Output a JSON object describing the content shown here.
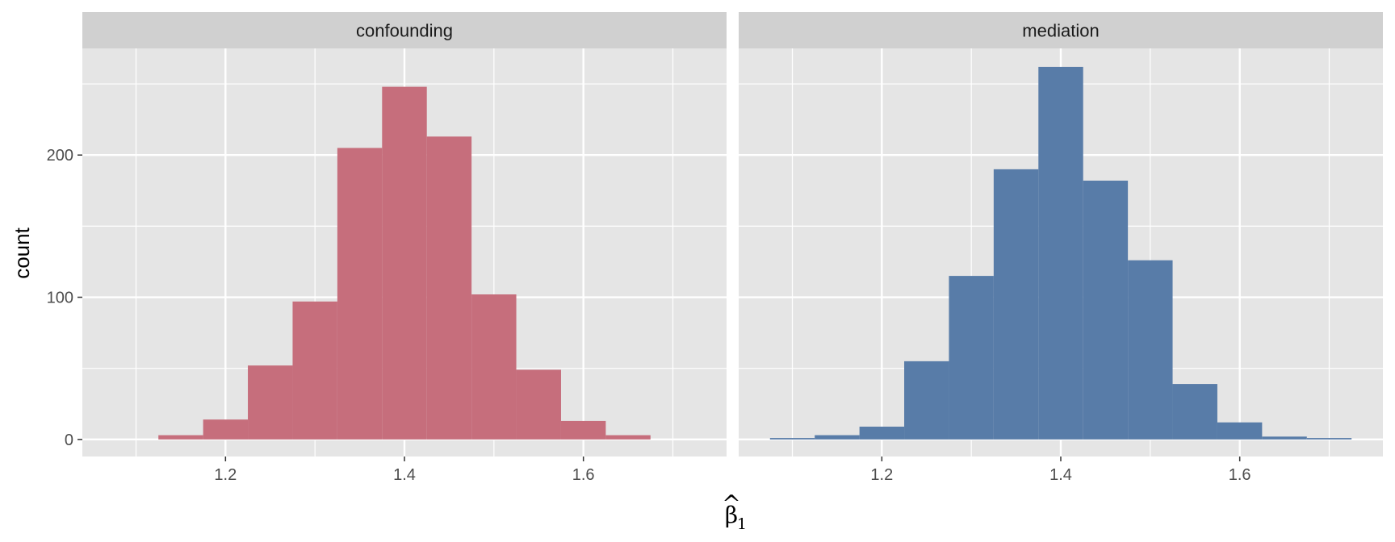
{
  "chart_data": {
    "type": "bar",
    "subtype": "histogram-facets",
    "ylabel": "count",
    "xlabel_main": "β",
    "xlabel_hat": "^",
    "xlabel_sub": "1",
    "bin_width": 0.05,
    "xlim": [
      1.04,
      1.76
    ],
    "ylim": [
      -12,
      275
    ],
    "x_ticks": [
      1.2,
      1.4,
      1.6
    ],
    "x_tick_labels": [
      "1.2",
      "1.4",
      "1.6"
    ],
    "y_ticks": [
      0,
      100,
      200
    ],
    "y_tick_labels": [
      "0",
      "100",
      "200"
    ],
    "grid": true,
    "colors": {
      "panel_bg": "#e5e5e5",
      "strip_bg": "#d0d0d0",
      "gridline": "#ffffff"
    },
    "facets": [
      {
        "label": "confounding",
        "color": "#c66e7c",
        "bins": [
          {
            "x": 1.15,
            "count": 3
          },
          {
            "x": 1.2,
            "count": 14
          },
          {
            "x": 1.25,
            "count": 52
          },
          {
            "x": 1.3,
            "count": 97
          },
          {
            "x": 1.35,
            "count": 205
          },
          {
            "x": 1.4,
            "count": 248
          },
          {
            "x": 1.45,
            "count": 213
          },
          {
            "x": 1.5,
            "count": 102
          },
          {
            "x": 1.55,
            "count": 49
          },
          {
            "x": 1.6,
            "count": 13
          },
          {
            "x": 1.65,
            "count": 3
          }
        ]
      },
      {
        "label": "mediation",
        "color": "#587ca8",
        "bins": [
          {
            "x": 1.1,
            "count": 1
          },
          {
            "x": 1.15,
            "count": 3
          },
          {
            "x": 1.2,
            "count": 9
          },
          {
            "x": 1.25,
            "count": 55
          },
          {
            "x": 1.3,
            "count": 115
          },
          {
            "x": 1.35,
            "count": 190
          },
          {
            "x": 1.4,
            "count": 262
          },
          {
            "x": 1.45,
            "count": 182
          },
          {
            "x": 1.5,
            "count": 126
          },
          {
            "x": 1.55,
            "count": 39
          },
          {
            "x": 1.6,
            "count": 12
          },
          {
            "x": 1.65,
            "count": 2
          },
          {
            "x": 1.7,
            "count": 1
          }
        ]
      }
    ]
  }
}
